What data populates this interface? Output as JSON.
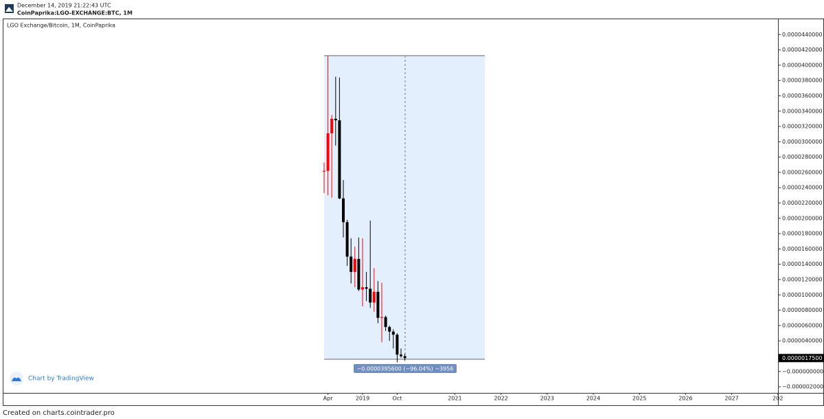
{
  "header": {
    "timestamp": "December 14, 2019 21:22:43 UTC",
    "symbol": "CoinPaprika:LGO-EXCHANGE:BTC, 1M"
  },
  "footer": "Created on charts.cointrader.pro",
  "branding": "Chart by TradingView",
  "chart_data": {
    "type": "candlestick",
    "title": "LGO Exchange/Bitcoin, 1M, CoinPaprika",
    "x": [
      "2018-03",
      "2018-04",
      "2018-05",
      "2018-06",
      "2018-07",
      "2018-08",
      "2018-09",
      "2018-10",
      "2018-11",
      "2018-12",
      "2019-01",
      "2019-02",
      "2019-03",
      "2019-04",
      "2019-05",
      "2019-06",
      "2019-07",
      "2019-08",
      "2019-09",
      "2019-10",
      "2019-11",
      "2019-12"
    ],
    "open": [
      2.61e-05,
      2.62e-05,
      3.11e-05,
      3.3e-05,
      3.28e-05,
      2.26e-05,
      1.95e-05,
      1.5e-05,
      1.3e-05,
      1.47e-05,
      1.07e-05,
      1.1e-05,
      1.08e-05,
      9e-06,
      1.04e-05,
      7e-06,
      7.1e-06,
      5.8e-06,
      5.2e-06,
      4.8e-06,
      2.2e-06,
      2e-06
    ],
    "high": [
      2.73e-05,
      4.12e-05,
      3.35e-05,
      3.85e-05,
      3.84e-05,
      2.5e-05,
      1.98e-05,
      1.74e-05,
      1.63e-05,
      1.75e-05,
      1.74e-05,
      1.3e-05,
      1.97e-05,
      1.35e-05,
      1.18e-05,
      1.16e-05,
      7.3e-06,
      6e-06,
      5.5e-06,
      5e-06,
      3e-06,
      2.3e-06
    ],
    "low": [
      2.33e-05,
      2.3e-05,
      2.27e-05,
      2.95e-05,
      2.25e-05,
      1.75e-05,
      1.38e-05,
      1.15e-05,
      1.1e-05,
      1.05e-05,
      8.5e-06,
      9.2e-06,
      8.3e-06,
      7.8e-06,
      6.3e-06,
      3.8e-06,
      5.3e-06,
      4e-06,
      3e-06,
      1.2e-06,
      1.8e-06,
      1.4e-06
    ],
    "close": [
      2.62e-05,
      3.11e-05,
      3.3e-05,
      3.28e-05,
      2.26e-05,
      1.95e-05,
      1.5e-05,
      1.3e-05,
      1.47e-05,
      1.07e-05,
      1.1e-05,
      1.08e-05,
      9e-06,
      1.04e-05,
      7e-06,
      7.1e-06,
      5.8e-06,
      5.2e-06,
      4.8e-06,
      2.2e-06,
      2e-06,
      1.75e-06
    ],
    "up_color": "#ff0000",
    "down_color": "#000000",
    "last_price": {
      "value": 1.75e-06,
      "label": "0.0000017500"
    },
    "measure_label": "−0.0000395600 (−96.04%) −3956",
    "ylim": [
      -2.8e-06,
      4.6e-05
    ],
    "yticks": [
      {
        "value": 4.4e-05,
        "label": "0.0000440000"
      },
      {
        "value": 4.2e-05,
        "label": "0.0000420000"
      },
      {
        "value": 4e-05,
        "label": "0.0000400000"
      },
      {
        "value": 3.8e-05,
        "label": "0.0000380000"
      },
      {
        "value": 3.6e-05,
        "label": "0.0000360000"
      },
      {
        "value": 3.4e-05,
        "label": "0.0000340000"
      },
      {
        "value": 3.2e-05,
        "label": "0.0000320000"
      },
      {
        "value": 3e-05,
        "label": "0.0000300000"
      },
      {
        "value": 2.8e-05,
        "label": "0.0000280000"
      },
      {
        "value": 2.6e-05,
        "label": "0.0000260000"
      },
      {
        "value": 2.4e-05,
        "label": "0.0000240000"
      },
      {
        "value": 2.2e-05,
        "label": "0.0000220000"
      },
      {
        "value": 2e-05,
        "label": "0.0000200000"
      },
      {
        "value": 1.8e-05,
        "label": "0.0000180000"
      },
      {
        "value": 1.6e-05,
        "label": "0.0000160000"
      },
      {
        "value": 1.4e-05,
        "label": "0.0000140000"
      },
      {
        "value": 1.2e-05,
        "label": "0.0000120000"
      },
      {
        "value": 1e-05,
        "label": "0.0000100000"
      },
      {
        "value": 8e-06,
        "label": "0.0000080000"
      },
      {
        "value": 6e-06,
        "label": "0.0000060000"
      },
      {
        "value": 4e-06,
        "label": "0.0000040000"
      },
      {
        "value": 0,
        "label": "−0.0000000000"
      },
      {
        "value": -2e-06,
        "label": "−0.0000020000"
      }
    ],
    "xticks": [
      {
        "value": "2018-04",
        "label": "Apr"
      },
      {
        "value": "2019-01",
        "label": "2019"
      },
      {
        "value": "2019-10",
        "label": "Oct"
      },
      {
        "value": "2021-01",
        "label": "2021"
      },
      {
        "value": "2022-01",
        "label": "2022"
      },
      {
        "value": "2023-01",
        "label": "2023"
      },
      {
        "value": "2024-01",
        "label": "2024"
      },
      {
        "value": "2025-01",
        "label": "2025"
      },
      {
        "value": "2026-01",
        "label": "2026"
      },
      {
        "value": "2027-01",
        "label": "2027"
      },
      {
        "value": "2028-01",
        "label": "202"
      }
    ]
  }
}
